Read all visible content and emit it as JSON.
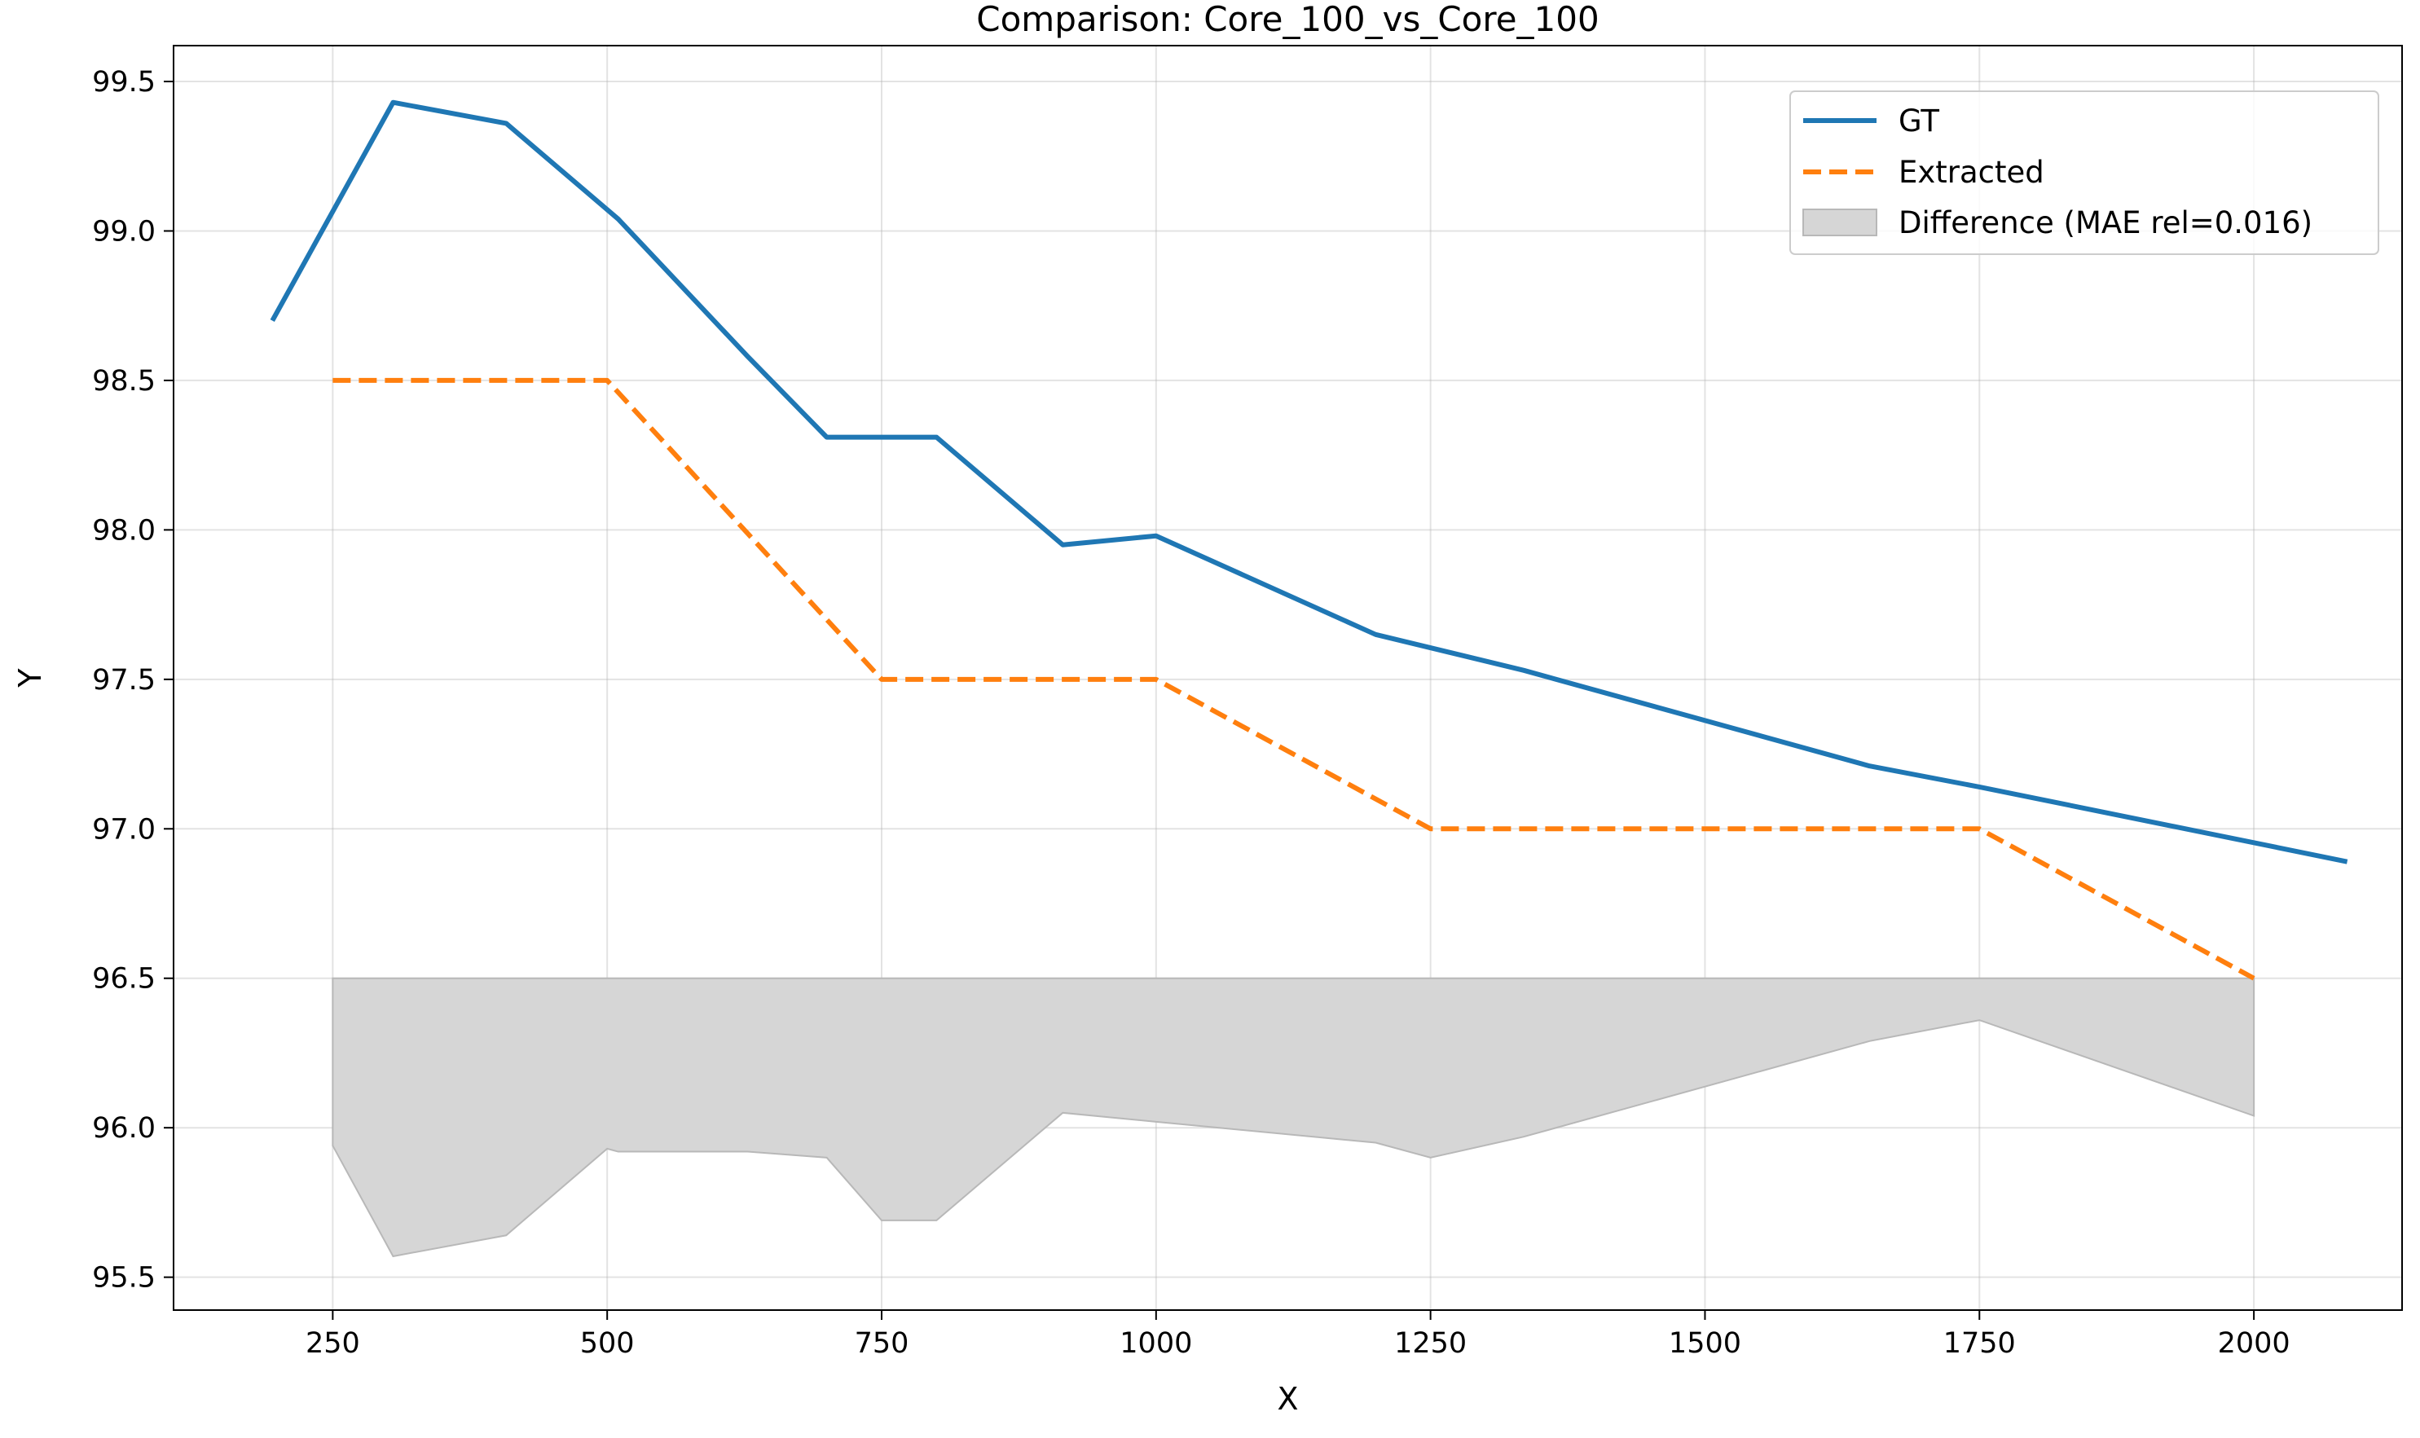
{
  "chart_data": {
    "type": "line",
    "title": "Comparison: Core_100_vs_Core_100",
    "xlabel": "X",
    "ylabel": "Y",
    "xlim": [
      105,
      2135
    ],
    "ylim": [
      95.39,
      99.62
    ],
    "xticks": [
      250,
      500,
      750,
      1000,
      1250,
      1500,
      1750,
      2000
    ],
    "yticks": [
      95.5,
      96.0,
      96.5,
      97.0,
      97.5,
      98.0,
      98.5,
      99.0,
      99.5
    ],
    "xtick_labels": [
      "250",
      "500",
      "750",
      "1000",
      "1250",
      "1500",
      "1750",
      "2000"
    ],
    "ytick_labels": [
      "95.5",
      "96.0",
      "96.5",
      "97.0",
      "97.5",
      "98.0",
      "98.5",
      "99.0",
      "99.5"
    ],
    "grid": true,
    "legend_position": "top-right",
    "series": [
      {
        "name": "GT",
        "style": "solid",
        "color": "#1f77b4",
        "x": [
          195,
          305,
          408,
          510,
          628,
          700,
          800,
          915,
          1000,
          1200,
          1335,
          1650,
          1750,
          2085
        ],
        "y": [
          98.7,
          99.43,
          99.36,
          99.04,
          98.58,
          98.31,
          98.31,
          97.95,
          97.98,
          97.65,
          97.53,
          97.21,
          97.14,
          96.89
        ]
      },
      {
        "name": "Extracted",
        "style": "dashed",
        "color": "#ff7f0e",
        "x": [
          250,
          500,
          750,
          1000,
          1250,
          1750,
          2000
        ],
        "y": [
          98.5,
          98.5,
          97.5,
          97.5,
          97.0,
          97.0,
          96.5
        ]
      },
      {
        "name": "Difference (MAE rel=0.016)",
        "style": "fill",
        "color": "#d6d6d6",
        "baseline": 96.5,
        "x": [
          250,
          305,
          408,
          500,
          510,
          628,
          700,
          750,
          800,
          915,
          1000,
          1200,
          1250,
          1335,
          1650,
          1750,
          2000
        ],
        "y": [
          95.94,
          95.57,
          95.64,
          95.93,
          95.92,
          95.92,
          95.9,
          95.69,
          95.69,
          96.05,
          96.02,
          95.95,
          95.9,
          95.97,
          96.29,
          96.36,
          96.04
        ]
      }
    ]
  }
}
